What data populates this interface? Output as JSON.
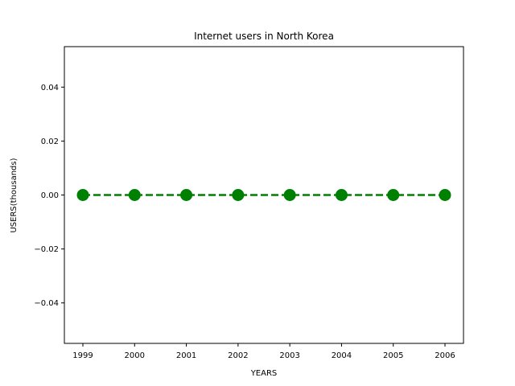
{
  "chart_data": {
    "type": "line",
    "title": "Internet users in North Korea",
    "xlabel": "YEARS",
    "ylabel": "USERS(thousands)",
    "x": [
      1999,
      2000,
      2001,
      2002,
      2003,
      2004,
      2005,
      2006
    ],
    "x_tick_labels": [
      "1999",
      "2000",
      "2001",
      "2002",
      "2003",
      "2004",
      "2005",
      "2006"
    ],
    "series": [
      {
        "values": [
          0,
          0,
          0,
          0,
          0,
          0,
          0,
          0
        ],
        "color": "#008000",
        "line_style": "dashed",
        "marker": "circle"
      }
    ],
    "ylim": [
      -0.055,
      0.055
    ],
    "y_ticks": [
      -0.04,
      -0.02,
      0.0,
      0.02,
      0.04
    ],
    "y_tick_labels": [
      "−0.04",
      "−0.02",
      "0.00",
      "0.02",
      "0.04"
    ],
    "grid": false,
    "legend": "none"
  }
}
